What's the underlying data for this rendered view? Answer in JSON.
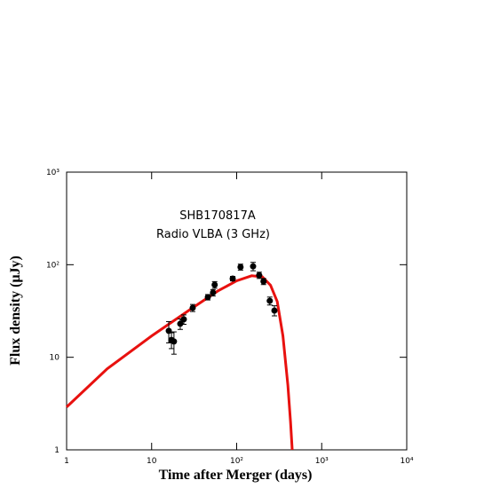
{
  "chart_data": {
    "type": "scatter",
    "annotations": [
      "SHB170817A",
      "Radio  VLBA (3 GHz)"
    ],
    "x_label": "Time after Merger (days)",
    "y_label": "Flux density (μJy)",
    "x_log": true,
    "y_log": true,
    "xlim": [
      1,
      10000
    ],
    "ylim": [
      1,
      1000
    ],
    "xticks": [
      1,
      10,
      {
        "value": 100,
        "label": "10²"
      },
      {
        "value": 1000,
        "label": "10³"
      },
      {
        "value": 10000,
        "label": "10⁴"
      }
    ],
    "yticks": [
      1,
      10,
      {
        "value": 100,
        "label": "10²"
      },
      {
        "value": 1000,
        "label": "10³"
      }
    ],
    "points": {
      "color": "#000000",
      "x": [
        15.9,
        17.1,
        18.3,
        21.7,
        23.9,
        30.4,
        45.8,
        52.7,
        55.1,
        89.8,
        111,
        156,
        184,
        207,
        245,
        278
      ],
      "values": [
        19.3,
        15.4,
        14.8,
        23,
        25.7,
        34.2,
        44.6,
        49.9,
        60.7,
        70.8,
        94.4,
        96,
        77,
        66,
        40.7,
        32
      ],
      "errors": [
        5,
        3,
        4,
        3,
        3,
        3,
        3,
        4,
        5,
        4,
        7,
        10,
        6,
        5,
        4,
        4
      ]
    },
    "model": {
      "color": "#e8110f",
      "x": [
        1,
        3,
        10,
        30,
        60,
        100,
        150,
        200,
        250,
        300,
        350,
        400,
        430,
        450
      ],
      "values": [
        2.9,
        7.5,
        17,
        34,
        52,
        67,
        76,
        74,
        60,
        40,
        17,
        5,
        2,
        1
      ]
    }
  }
}
